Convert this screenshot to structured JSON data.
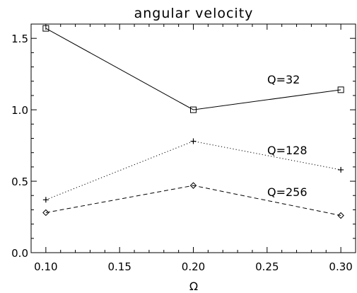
{
  "chart_data": {
    "type": "line",
    "title": "angular velocity",
    "xlabel": "Ω",
    "ylabel": "",
    "xlim": [
      0.09,
      0.31
    ],
    "ylim": [
      0.0,
      1.6
    ],
    "xticks": [
      0.1,
      0.15,
      0.2,
      0.25,
      0.3
    ],
    "xtick_labels": [
      "0.10",
      "0.15",
      "0.20",
      "0.25",
      "0.30"
    ],
    "yticks": [
      0.0,
      0.5,
      1.0,
      1.5
    ],
    "ytick_labels": [
      "0.0",
      "0.5",
      "1.0",
      "1.5"
    ],
    "grid": false,
    "x": [
      0.1,
      0.2,
      0.3
    ],
    "series": [
      {
        "name": "Q=32",
        "values": [
          1.57,
          1.0,
          1.14
        ],
        "line": "solid",
        "marker": "square"
      },
      {
        "name": "Q=128",
        "values": [
          0.37,
          0.78,
          0.58
        ],
        "line": "dotted",
        "marker": "plus"
      },
      {
        "name": "Q=256",
        "values": [
          0.28,
          0.47,
          0.26
        ],
        "line": "dashed",
        "marker": "diamond"
      }
    ],
    "annotations": [
      {
        "text": "Q=32",
        "series": 0
      },
      {
        "text": "Q=128",
        "series": 1
      },
      {
        "text": "Q=256",
        "series": 2
      }
    ]
  }
}
